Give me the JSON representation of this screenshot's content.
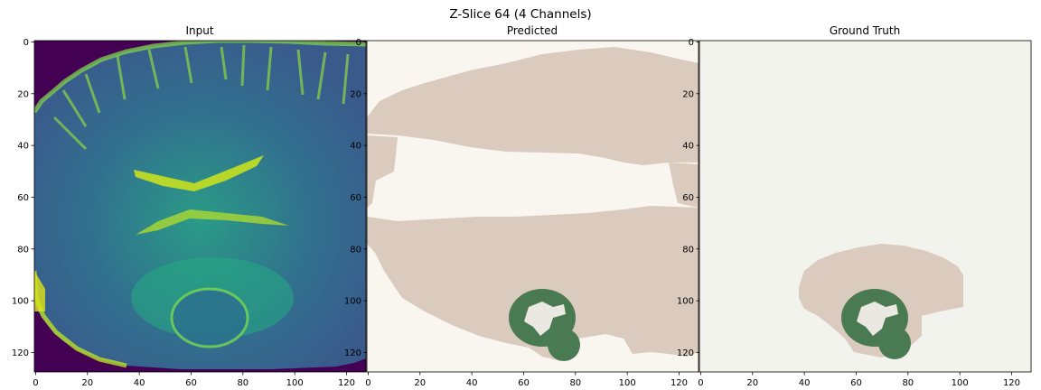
{
  "figure": {
    "suptitle": "Z-Slice 64 (4 Channels)"
  },
  "panels": [
    {
      "title": "Input",
      "x_ticks": [
        "0",
        "20",
        "40",
        "60",
        "80",
        "100",
        "120"
      ],
      "y_ticks": [
        "0",
        "20",
        "40",
        "60",
        "80",
        "100",
        "120"
      ]
    },
    {
      "title": "Predicted",
      "x_ticks": [
        "0",
        "20",
        "40",
        "60",
        "80",
        "100",
        "120"
      ],
      "y_ticks": [
        "0",
        "20",
        "40",
        "60",
        "80",
        "100",
        "120"
      ]
    },
    {
      "title": "Ground Truth",
      "x_ticks": [
        "0",
        "20",
        "40",
        "60",
        "80",
        "100",
        "120"
      ],
      "y_ticks": [
        "0",
        "20",
        "40",
        "60",
        "80",
        "100",
        "120"
      ]
    }
  ],
  "colors": {
    "input_background": "#440154",
    "input_tissue": "#2f6d8c",
    "input_bright": "#c7e020",
    "seg_background": "#f8f6ef",
    "seg_brain": "#dbcbbf",
    "seg_tumor_ring": "#4a7a52",
    "seg_tumor_core": "#ebe8e2",
    "gt_background": "#f3f3ee"
  }
}
